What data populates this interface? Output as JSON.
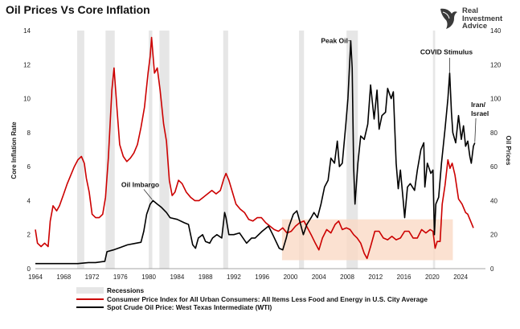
{
  "title": "Oil Prices Vs Core Inflation",
  "logo": {
    "line1": "Real",
    "line2": "Investment",
    "line3": "Advice"
  },
  "chart_data": {
    "type": "line",
    "title": "Oil Prices Vs Core Inflation",
    "xlim": [
      1964,
      2027.5
    ],
    "x_ticks": [
      1964,
      1968,
      1972,
      1976,
      1980,
      1984,
      1988,
      1992,
      1996,
      2000,
      2004,
      2008,
      2012,
      2016,
      2020,
      2024
    ],
    "left_axis": {
      "label": "Core Inflation Rate",
      "lim": [
        0,
        14
      ],
      "ticks": [
        0,
        2,
        4,
        6,
        8,
        10,
        12,
        14
      ]
    },
    "right_axis": {
      "label": "Oil Prices",
      "lim": [
        0,
        140
      ],
      "ticks": [
        0,
        20,
        40,
        60,
        80,
        100,
        120,
        140
      ]
    },
    "grid": false,
    "legend_position": "bottom-left",
    "recessions": [
      [
        1969.9,
        1970.9
      ],
      [
        1973.9,
        1975.2
      ],
      [
        1980.0,
        1980.5
      ],
      [
        1981.5,
        1982.9
      ],
      [
        1990.5,
        1991.2
      ],
      [
        2001.2,
        2001.9
      ],
      [
        2007.9,
        2009.5
      ],
      [
        2020.1,
        2020.4
      ]
    ],
    "highlight_band": {
      "x": [
        1998.8,
        2022.9
      ],
      "y": [
        0.5,
        2.9
      ],
      "color": "#fad9c6"
    },
    "series": [
      {
        "name": "Consumer Price Index for All Urban Consumers: All Items Less Food and Energy in U.S. City Average",
        "axis": "left",
        "color": "#cc0000",
        "points": [
          [
            1964,
            2.3
          ],
          [
            1964.3,
            1.5
          ],
          [
            1964.8,
            1.3
          ],
          [
            1965.3,
            1.5
          ],
          [
            1965.8,
            1.3
          ],
          [
            1966.1,
            2.8
          ],
          [
            1966.5,
            3.7
          ],
          [
            1967,
            3.4
          ],
          [
            1967.4,
            3.7
          ],
          [
            1968,
            4.4
          ],
          [
            1968.5,
            5.0
          ],
          [
            1969,
            5.5
          ],
          [
            1969.5,
            6.0
          ],
          [
            1970,
            6.4
          ],
          [
            1970.5,
            6.6
          ],
          [
            1970.9,
            6.2
          ],
          [
            1971.2,
            5.3
          ],
          [
            1971.6,
            4.5
          ],
          [
            1972,
            3.2
          ],
          [
            1972.5,
            3.0
          ],
          [
            1973,
            3.0
          ],
          [
            1973.5,
            3.2
          ],
          [
            1973.9,
            4.2
          ],
          [
            1974.3,
            6.5
          ],
          [
            1974.8,
            10.5
          ],
          [
            1975.1,
            11.8
          ],
          [
            1975.5,
            9.5
          ],
          [
            1975.9,
            7.3
          ],
          [
            1976.4,
            6.6
          ],
          [
            1976.9,
            6.3
          ],
          [
            1977.4,
            6.5
          ],
          [
            1977.9,
            6.8
          ],
          [
            1978.4,
            7.3
          ],
          [
            1978.9,
            8.3
          ],
          [
            1979.4,
            9.5
          ],
          [
            1979.9,
            11.5
          ],
          [
            1980.2,
            12.5
          ],
          [
            1980.4,
            13.6
          ],
          [
            1980.8,
            11.5
          ],
          [
            1981.2,
            11.8
          ],
          [
            1981.6,
            10.5
          ],
          [
            1982.1,
            8.5
          ],
          [
            1982.5,
            7.5
          ],
          [
            1982.9,
            5.2
          ],
          [
            1983.3,
            4.3
          ],
          [
            1983.7,
            4.5
          ],
          [
            1984.2,
            5.2
          ],
          [
            1984.7,
            5.0
          ],
          [
            1985.3,
            4.5
          ],
          [
            1985.9,
            4.2
          ],
          [
            1986.5,
            4.0
          ],
          [
            1987.1,
            4.0
          ],
          [
            1987.7,
            4.2
          ],
          [
            1988.3,
            4.4
          ],
          [
            1988.9,
            4.6
          ],
          [
            1989.5,
            4.4
          ],
          [
            1990.1,
            4.6
          ],
          [
            1990.6,
            5.3
          ],
          [
            1990.9,
            5.6
          ],
          [
            1991.3,
            5.2
          ],
          [
            1991.8,
            4.5
          ],
          [
            1992.3,
            3.8
          ],
          [
            1992.9,
            3.5
          ],
          [
            1993.5,
            3.3
          ],
          [
            1994.1,
            2.9
          ],
          [
            1994.7,
            2.8
          ],
          [
            1995.3,
            3.0
          ],
          [
            1995.9,
            3.0
          ],
          [
            1996.5,
            2.7
          ],
          [
            1997.1,
            2.5
          ],
          [
            1997.7,
            2.3
          ],
          [
            1998.3,
            2.2
          ],
          [
            1998.9,
            2.4
          ],
          [
            1999.5,
            2.1
          ],
          [
            2000.1,
            2.2
          ],
          [
            2000.7,
            2.5
          ],
          [
            2001.3,
            2.7
          ],
          [
            2001.9,
            2.8
          ],
          [
            2002.4,
            2.4
          ],
          [
            2002.9,
            2.0
          ],
          [
            2003.5,
            1.5
          ],
          [
            2004.0,
            1.1
          ],
          [
            2004.5,
            1.8
          ],
          [
            2005.1,
            2.3
          ],
          [
            2005.7,
            2.1
          ],
          [
            2006.3,
            2.6
          ],
          [
            2006.8,
            2.8
          ],
          [
            2007.3,
            2.3
          ],
          [
            2007.9,
            2.4
          ],
          [
            2008.4,
            2.3
          ],
          [
            2008.9,
            2.0
          ],
          [
            2009.4,
            1.8
          ],
          [
            2009.9,
            1.5
          ],
          [
            2010.4,
            0.9
          ],
          [
            2010.8,
            0.6
          ],
          [
            2011.3,
            1.3
          ],
          [
            2011.9,
            2.2
          ],
          [
            2012.5,
            2.2
          ],
          [
            2013.1,
            1.8
          ],
          [
            2013.7,
            1.7
          ],
          [
            2014.3,
            1.9
          ],
          [
            2014.9,
            1.7
          ],
          [
            2015.5,
            1.8
          ],
          [
            2016.1,
            2.2
          ],
          [
            2016.7,
            2.2
          ],
          [
            2017.3,
            1.8
          ],
          [
            2017.9,
            1.8
          ],
          [
            2018.5,
            2.3
          ],
          [
            2019.1,
            2.1
          ],
          [
            2019.7,
            2.3
          ],
          [
            2020.1,
            2.2
          ],
          [
            2020.4,
            1.2
          ],
          [
            2020.7,
            1.6
          ],
          [
            2021.1,
            1.6
          ],
          [
            2021.4,
            3.8
          ],
          [
            2021.8,
            4.9
          ],
          [
            2022.2,
            6.4
          ],
          [
            2022.5,
            5.9
          ],
          [
            2022.8,
            6.2
          ],
          [
            2023.2,
            5.5
          ],
          [
            2023.7,
            4.1
          ],
          [
            2024.2,
            3.8
          ],
          [
            2024.7,
            3.3
          ],
          [
            2025.0,
            3.2
          ],
          [
            2025.5,
            2.7
          ],
          [
            2025.8,
            2.4
          ]
        ]
      },
      {
        "name": "Spot Crude Oil Price: West Texas Intermediate (WTI)",
        "axis": "right",
        "color": "#000000",
        "points": [
          [
            1964,
            3
          ],
          [
            1970,
            3
          ],
          [
            1971.5,
            3.6
          ],
          [
            1972.5,
            3.6
          ],
          [
            1973.8,
            4.3
          ],
          [
            1974.1,
            10
          ],
          [
            1975,
            11
          ],
          [
            1976,
            12.5
          ],
          [
            1977,
            14
          ],
          [
            1978,
            14.8
          ],
          [
            1978.9,
            15.5
          ],
          [
            1979.3,
            22
          ],
          [
            1979.7,
            32
          ],
          [
            1980.2,
            38
          ],
          [
            1980.6,
            40
          ],
          [
            1981.2,
            38
          ],
          [
            1981.8,
            36
          ],
          [
            1982.5,
            33
          ],
          [
            1983,
            30
          ],
          [
            1984,
            29
          ],
          [
            1985,
            27
          ],
          [
            1985.6,
            26
          ],
          [
            1986.2,
            14
          ],
          [
            1986.6,
            12
          ],
          [
            1987,
            18
          ],
          [
            1987.6,
            20
          ],
          [
            1988,
            16
          ],
          [
            1988.6,
            15
          ],
          [
            1989,
            18
          ],
          [
            1989.6,
            20
          ],
          [
            1990.3,
            18
          ],
          [
            1990.7,
            33
          ],
          [
            1990.9,
            30
          ],
          [
            1991.3,
            20
          ],
          [
            1992,
            20
          ],
          [
            1992.8,
            21
          ],
          [
            1993.8,
            15
          ],
          [
            1994.5,
            18
          ],
          [
            1995,
            18
          ],
          [
            1996,
            22
          ],
          [
            1996.9,
            25
          ],
          [
            1997.5,
            20
          ],
          [
            1998.4,
            12
          ],
          [
            1998.9,
            11
          ],
          [
            1999.4,
            18
          ],
          [
            1999.8,
            25
          ],
          [
            2000.4,
            32
          ],
          [
            2000.9,
            34
          ],
          [
            2001.3,
            28
          ],
          [
            2001.8,
            20
          ],
          [
            2002.3,
            26
          ],
          [
            2002.9,
            30
          ],
          [
            2003.3,
            33
          ],
          [
            2003.8,
            30
          ],
          [
            2004.3,
            38
          ],
          [
            2004.8,
            48
          ],
          [
            2005.3,
            52
          ],
          [
            2005.7,
            65
          ],
          [
            2006.2,
            62
          ],
          [
            2006.6,
            75
          ],
          [
            2006.9,
            60
          ],
          [
            2007.3,
            62
          ],
          [
            2007.8,
            85
          ],
          [
            2008.1,
            100
          ],
          [
            2008.5,
            134
          ],
          [
            2008.7,
            118
          ],
          [
            2008.9,
            60
          ],
          [
            2009.1,
            38
          ],
          [
            2009.5,
            62
          ],
          [
            2009.9,
            78
          ],
          [
            2010.4,
            76
          ],
          [
            2010.9,
            85
          ],
          [
            2011.3,
            108
          ],
          [
            2011.8,
            88
          ],
          [
            2012.2,
            105
          ],
          [
            2012.5,
            82
          ],
          [
            2012.9,
            90
          ],
          [
            2013.4,
            92
          ],
          [
            2013.7,
            106
          ],
          [
            2014.2,
            100
          ],
          [
            2014.5,
            104
          ],
          [
            2014.9,
            62
          ],
          [
            2015.2,
            47
          ],
          [
            2015.5,
            58
          ],
          [
            2015.9,
            40
          ],
          [
            2016.1,
            30
          ],
          [
            2016.5,
            48
          ],
          [
            2016.9,
            50
          ],
          [
            2017.5,
            46
          ],
          [
            2017.9,
            58
          ],
          [
            2018.4,
            70
          ],
          [
            2018.8,
            74
          ],
          [
            2018.95,
            48
          ],
          [
            2019.3,
            62
          ],
          [
            2019.8,
            56
          ],
          [
            2020.1,
            58
          ],
          [
            2020.3,
            20
          ],
          [
            2020.5,
            38
          ],
          [
            2020.9,
            42
          ],
          [
            2021.3,
            62
          ],
          [
            2021.8,
            82
          ],
          [
            2022.2,
            100
          ],
          [
            2022.45,
            115
          ],
          [
            2022.7,
            92
          ],
          [
            2022.9,
            80
          ],
          [
            2023.3,
            74
          ],
          [
            2023.7,
            90
          ],
          [
            2024.1,
            76
          ],
          [
            2024.4,
            84
          ],
          [
            2024.7,
            72
          ],
          [
            2025.0,
            75
          ],
          [
            2025.3,
            66
          ],
          [
            2025.5,
            62
          ],
          [
            2025.8,
            72
          ],
          [
            2026.0,
            74
          ]
        ]
      }
    ],
    "annotations": [
      {
        "text": "Oil Imbargo",
        "x": 1980.5,
        "y_right": 40
      },
      {
        "text": "Peak Oil",
        "x": 2008.5,
        "y_right": 134
      },
      {
        "text": "COVID Stimulus",
        "x": 2022.45,
        "y_right": 115
      },
      {
        "text": "Iran/\nIsrael",
        "x": 2026.0,
        "y_right": 74
      }
    ]
  },
  "legend": {
    "recessions": "Recessions",
    "cpi": "Consumer Price Index for All Urban Consumers: All Items Less Food and Energy in U.S. City Average",
    "wti": "Spot Crude Oil Price: West Texas Intermediate (WTI)"
  },
  "colors": {
    "cpi": "#cc0000",
    "wti": "#000000",
    "recession": "#e6e6e6",
    "band": "#fad9c6"
  }
}
